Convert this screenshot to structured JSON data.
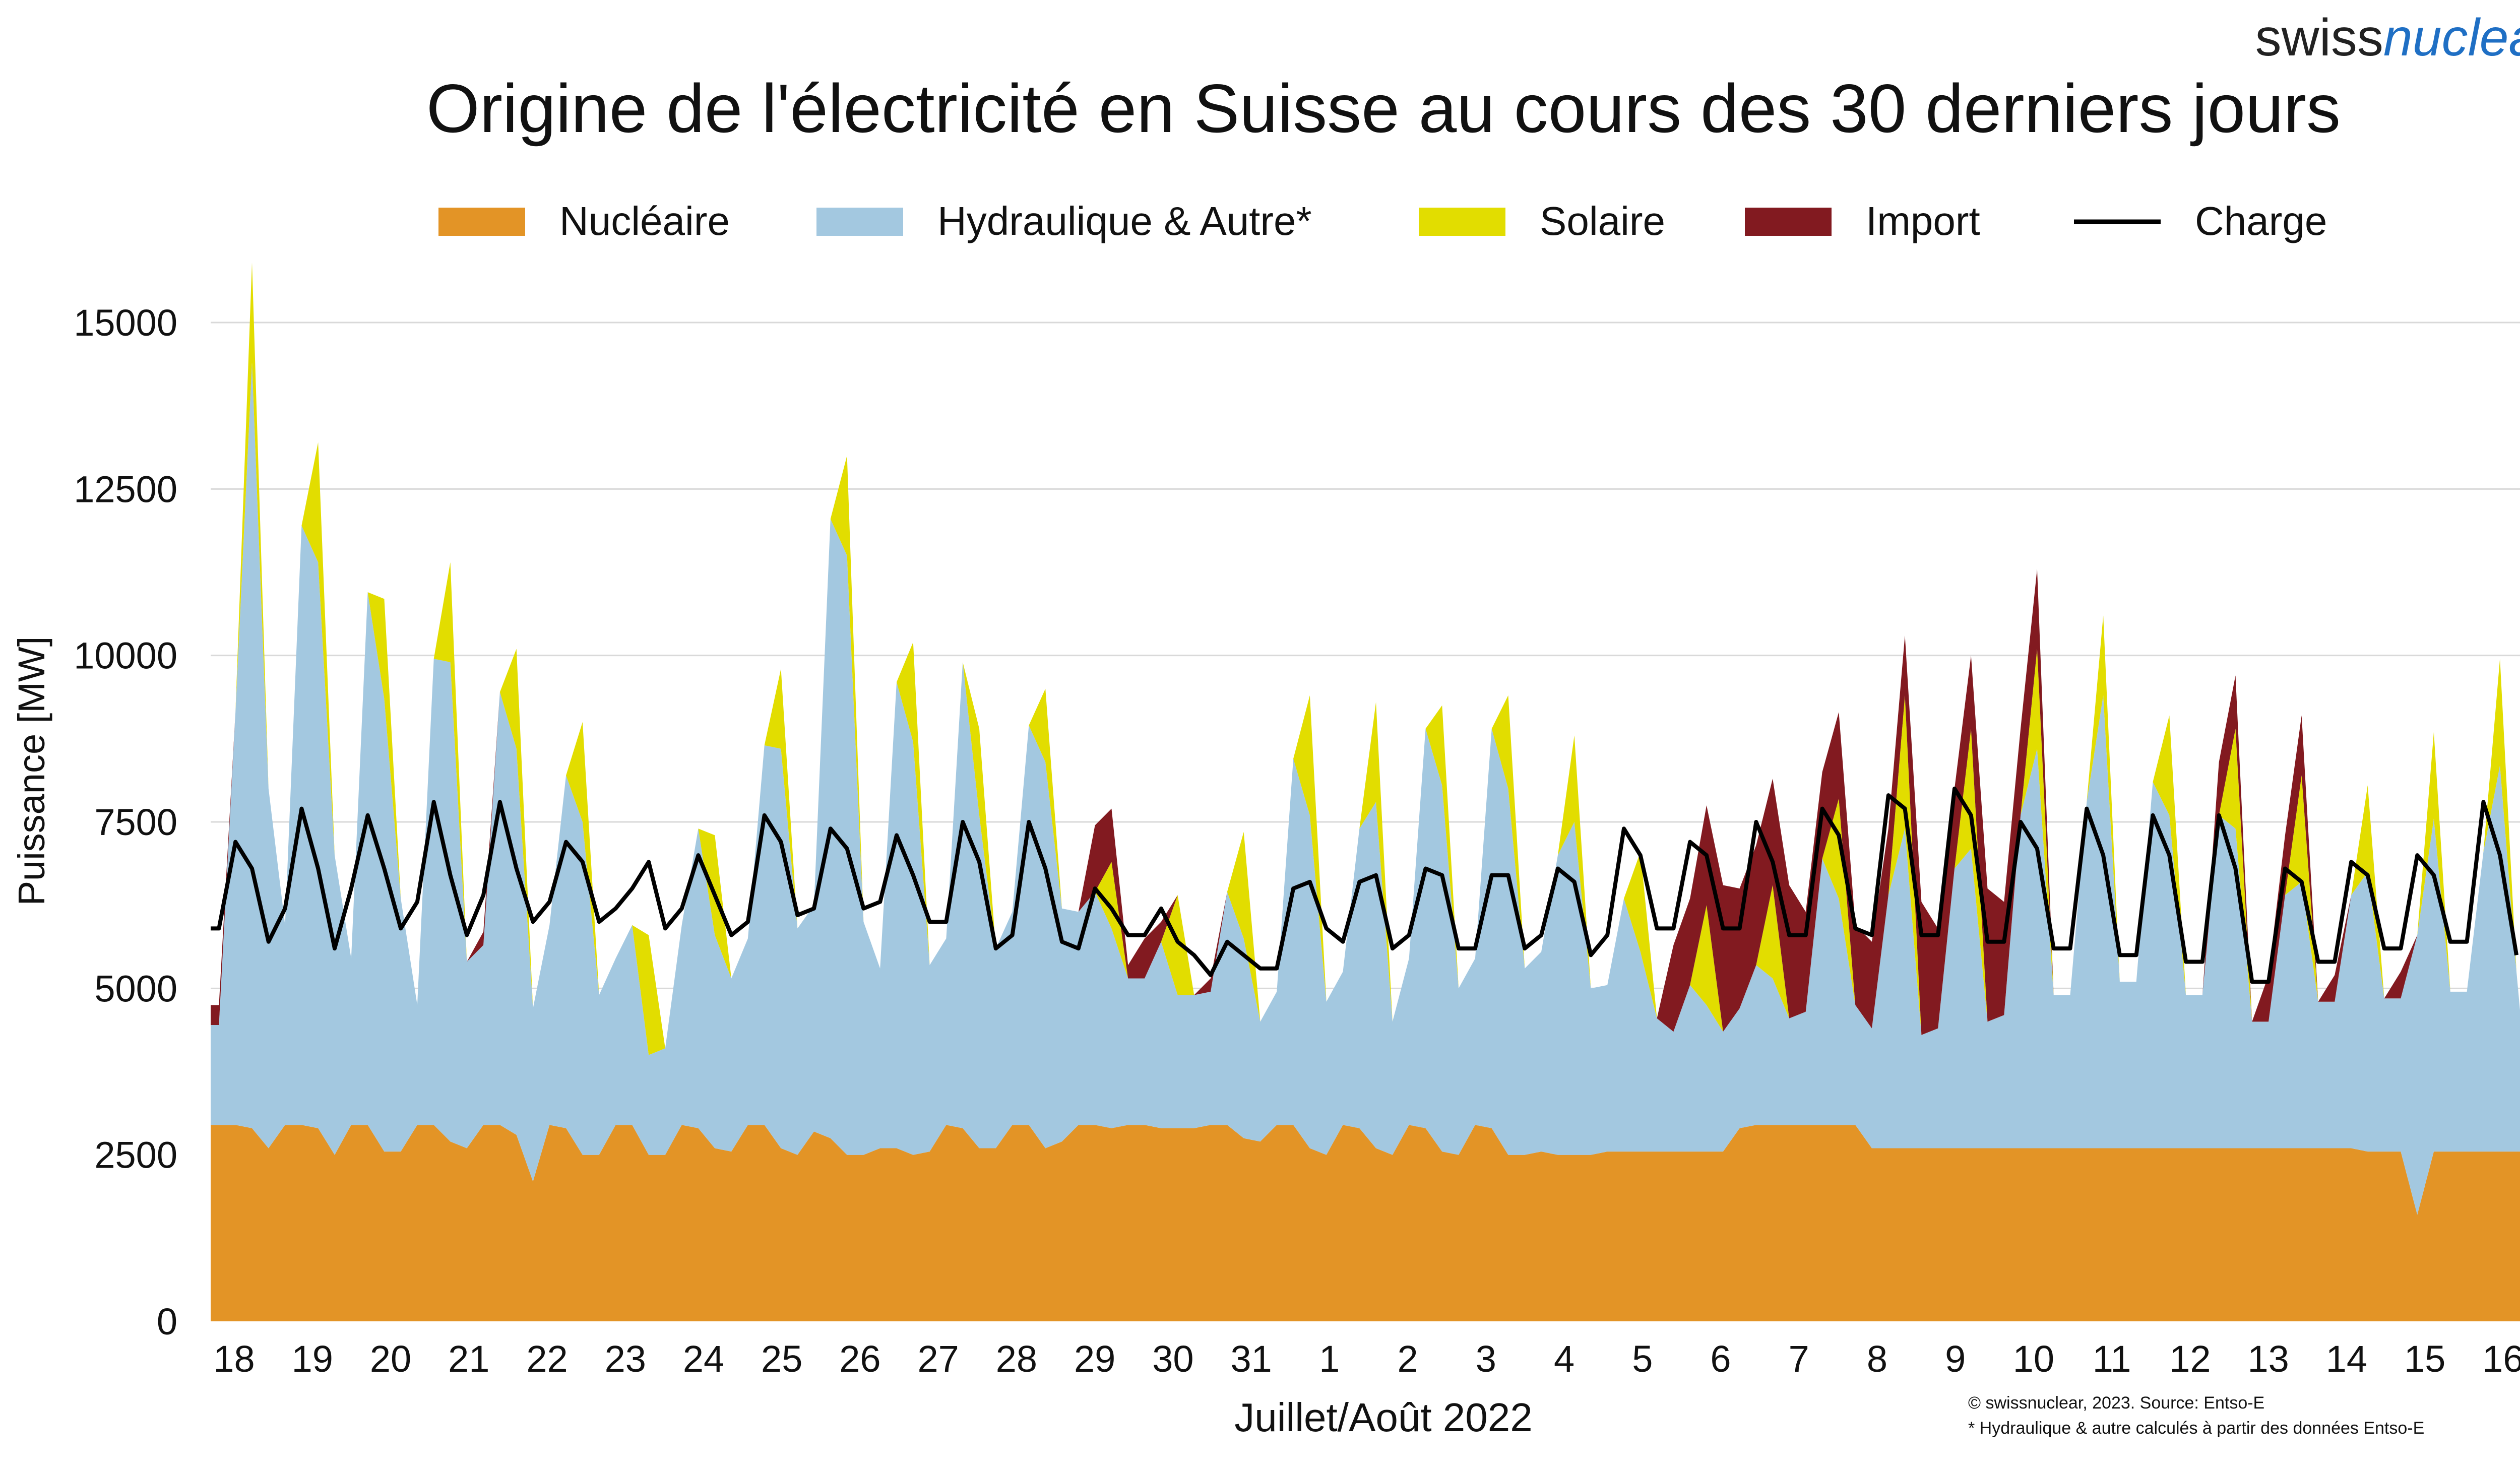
{
  "chart_data": {
    "type": "area",
    "title": "Origine de l'électricité en Suisse au cours des 30 derniers jours",
    "brand": {
      "part1": "swiss",
      "part2": "nuclear"
    },
    "xlabel": "Juillet/Août 2022",
    "ylabel": "Puissance [MW]",
    "ylim": [
      0,
      15000
    ],
    "yticks": [
      "0",
      "2500",
      "5000",
      "7500",
      "10000",
      "12500",
      "15000"
    ],
    "xlim": [
      0,
      30
    ],
    "grid": true,
    "legend_position": "top",
    "credits": [
      "© swissnuclear, 2023. Source: Entso-E",
      "* Hydraulique & autre calculés à partir des données Entso-E"
    ],
    "x_tick_labels": [
      "18",
      "19",
      "20",
      "21",
      "22",
      "23",
      "24",
      "25",
      "26",
      "27",
      "28",
      "29",
      "30",
      "31",
      "1",
      "2",
      "3",
      "4",
      "5",
      "6",
      "7",
      "8",
      "9",
      "10",
      "11",
      "12",
      "13",
      "14",
      "15",
      "16"
    ],
    "x_tick_positions_days": [
      0.3,
      1.3,
      2.3,
      3.3,
      4.3,
      5.3,
      6.3,
      7.3,
      8.3,
      9.3,
      10.3,
      11.3,
      12.3,
      13.3,
      14.3,
      15.3,
      16.3,
      17.3,
      18.3,
      19.3,
      20.3,
      21.3,
      22.3,
      23.3,
      24.3,
      25.3,
      26.3,
      27.3,
      28.3,
      29.3
    ],
    "sampling": "4 points per day (00h, 06h, 12h, 18h), MW, approximate readings",
    "series": [
      {
        "name": "Nucléaire",
        "color": "#E39426",
        "values": [
          2950,
          2950,
          2900,
          2600,
          2950,
          2950,
          2900,
          2500,
          2950,
          2950,
          2550,
          2550,
          2950,
          2950,
          2700,
          2600,
          2950,
          2950,
          2800,
          2100,
          2950,
          2900,
          2500,
          2500,
          2950,
          2950,
          2500,
          2500,
          2950,
          2900,
          2600,
          2550,
          2950,
          2950,
          2600,
          2500,
          2850,
          2750,
          2500,
          2500,
          2600,
          2600,
          2500,
          2550,
          2950,
          2900,
          2600,
          2600,
          2950,
          2950,
          2600,
          2700,
          2950,
          2950,
          2900,
          2950,
          2950,
          2900,
          2900,
          2900,
          2950,
          2950,
          2750,
          2700,
          2950,
          2950,
          2600,
          2500,
          2950,
          2900,
          2600,
          2500,
          2950,
          2900,
          2550,
          2500,
          2950,
          2900,
          2500,
          2500,
          2550,
          2500,
          2500,
          2500,
          2550,
          2550,
          2550,
          2550,
          2550,
          2550,
          2550,
          2550,
          2900,
          2950,
          2950,
          2950,
          2950,
          2950,
          2950,
          2950,
          2600,
          2600,
          2600,
          2600,
          2600,
          2600,
          2600,
          2600,
          2600,
          2600,
          2600,
          2600,
          2600,
          2600,
          2600,
          2600,
          2600,
          2600,
          2600,
          2600,
          2600,
          2600,
          2600,
          2600,
          2600,
          2600,
          2600,
          2600,
          2600,
          2600,
          2550,
          2550,
          2550,
          1600,
          2550,
          2550,
          2550,
          2550,
          2550,
          2550,
          2550,
          2550
        ]
      },
      {
        "name": "Hydraulique & Autre*",
        "color": "#A3C8E0",
        "values": [
          1500,
          6200,
          11500,
          5400,
          3000,
          9000,
          8500,
          4500,
          2500,
          8000,
          6800,
          3800,
          1800,
          7000,
          7200,
          2800,
          2700,
          6500,
          5800,
          2600,
          3000,
          5300,
          5000,
          2400,
          2500,
          3000,
          1500,
          1600,
          3000,
          4500,
          3200,
          2600,
          2800,
          5700,
          6000,
          3400,
          3400,
          9300,
          9000,
          3500,
          2700,
          7000,
          6200,
          2800,
          2800,
          7000,
          5000,
          3000,
          3200,
          6000,
          5800,
          3500,
          3200,
          3500,
          3000,
          2200,
          2200,
          2800,
          2000,
          2000,
          2000,
          3500,
          3000,
          1800,
          2000,
          5500,
          5000,
          2300,
          2300,
          4500,
          5200,
          2000,
          2500,
          6000,
          5500,
          2500,
          2500,
          6000,
          5500,
          2800,
          3000,
          4500,
          5000,
          2500,
          2500,
          3800,
          3000,
          2000,
          1800,
          2500,
          2200,
          1800,
          1800,
          2400,
          2200,
          1600,
          1700,
          4000,
          3400,
          1800,
          1800,
          3800,
          4800,
          1700,
          1800,
          4200,
          4500,
          1900,
          2000,
          5000,
          6000,
          2300,
          2300,
          5200,
          6800,
          2500,
          2500,
          5500,
          5000,
          2300,
          2300,
          5000,
          4800,
          1900,
          1900,
          3800,
          4000,
          2200,
          2200,
          3800,
          4200,
          2300,
          2300,
          4200,
          5000,
          2400,
          2400,
          4500,
          5800,
          2700
        ]
      },
      {
        "name": "Solaire",
        "color": "#E2DD00",
        "values": [
          0,
          0,
          1500,
          0,
          0,
          0,
          1800,
          0,
          0,
          0,
          1500,
          0,
          0,
          0,
          1500,
          0,
          0,
          0,
          1500,
          0,
          0,
          0,
          1500,
          0,
          0,
          0,
          1800,
          0,
          0,
          0,
          1500,
          0,
          0,
          0,
          1200,
          0,
          0,
          0,
          1500,
          0,
          0,
          0,
          1500,
          0,
          0,
          0,
          1300,
          0,
          0,
          0,
          1100,
          0,
          0,
          0,
          1000,
          0,
          0,
          0,
          1500,
          0,
          0,
          0,
          1600,
          0,
          0,
          0,
          1800,
          0,
          0,
          0,
          1500,
          0,
          0,
          0,
          1200,
          0,
          0,
          0,
          1400,
          0,
          0,
          0,
          1300,
          0,
          0,
          0,
          1500,
          0,
          0,
          0,
          1500,
          0,
          0,
          0,
          1400,
          0,
          0,
          0,
          1500,
          0,
          0,
          0,
          2000,
          0,
          0,
          0,
          1800,
          0,
          0,
          0,
          1500,
          0,
          0,
          0,
          1200,
          0,
          0,
          0,
          1500,
          0,
          0,
          0,
          1500,
          0,
          0,
          0,
          1600,
          0,
          0,
          0,
          1300,
          0,
          0,
          0,
          1300,
          0,
          0,
          0,
          1600,
          0
        ]
      },
      {
        "name": "Import",
        "color": "#821A20",
        "values": [
          300,
          0,
          0,
          0,
          0,
          0,
          0,
          0,
          0,
          0,
          0,
          0,
          0,
          0,
          0,
          0,
          200,
          0,
          0,
          0,
          0,
          0,
          0,
          0,
          0,
          0,
          0,
          0,
          0,
          0,
          0,
          0,
          0,
          0,
          0,
          0,
          0,
          0,
          0,
          0,
          0,
          0,
          0,
          0,
          0,
          0,
          0,
          0,
          0,
          0,
          0,
          0,
          0,
          1000,
          800,
          200,
          600,
          300,
          0,
          0,
          200,
          0,
          0,
          0,
          0,
          0,
          0,
          0,
          0,
          0,
          0,
          0,
          0,
          0,
          0,
          0,
          0,
          0,
          0,
          0,
          0,
          0,
          0,
          0,
          0,
          0,
          0,
          0,
          1300,
          1300,
          1500,
          2200,
          1800,
          1800,
          1600,
          2000,
          1500,
          1300,
          1300,
          1200,
          1300,
          1000,
          900,
          2000,
          1500,
          1200,
          1100,
          2000,
          1700,
          1300,
          1200,
          0,
          0,
          0,
          0,
          0,
          0,
          0,
          0,
          0,
          0,
          800,
          800,
          0,
          700,
          900,
          900,
          0,
          400,
          0,
          0,
          0,
          400,
          0,
          0,
          0,
          0,
          0
        ]
      },
      {
        "name": "Charge",
        "color": "#000000",
        "values": [
          5900,
          7200,
          6800,
          5700,
          6200,
          7700,
          6800,
          5600,
          6500,
          7600,
          6800,
          5900,
          6300,
          7800,
          6700,
          5800,
          6400,
          7800,
          6800,
          6000,
          6300,
          7200,
          6900,
          6000,
          6200,
          6500,
          6900,
          5900,
          6200,
          7000,
          6400,
          5800,
          6000,
          7600,
          7200,
          6100,
          6200,
          7400,
          7100,
          6200,
          6300,
          7300,
          6700,
          6000,
          6000,
          7500,
          6900,
          5600,
          5800,
          7500,
          6800,
          5700,
          5600,
          6500,
          6200,
          5800,
          5800,
          6200,
          5700,
          5500,
          5200,
          5700,
          5500,
          5300,
          5300,
          6500,
          6600,
          5900,
          5700,
          6600,
          6700,
          5600,
          5800,
          6800,
          6700,
          5600,
          5600,
          6700,
          6700,
          5600,
          5800,
          6800,
          6600,
          5500,
          5800,
          7400,
          7000,
          5900,
          5900,
          7200,
          7000,
          5900,
          5900,
          7500,
          6900,
          5800,
          5800,
          7700,
          7300,
          5900,
          5800,
          7900,
          7700,
          5800,
          5800,
          8000,
          7600,
          5700,
          5700,
          7500,
          7100,
          5600,
          5600,
          7700,
          7000,
          5500,
          5500,
          7600,
          7000,
          5400,
          5400,
          7600,
          6800,
          5100,
          5100,
          6800,
          6600,
          5400,
          5400,
          6900,
          6700,
          5600,
          5600,
          7000,
          6700,
          5700,
          5700,
          7800,
          7000,
          5500
        ]
      }
    ]
  }
}
